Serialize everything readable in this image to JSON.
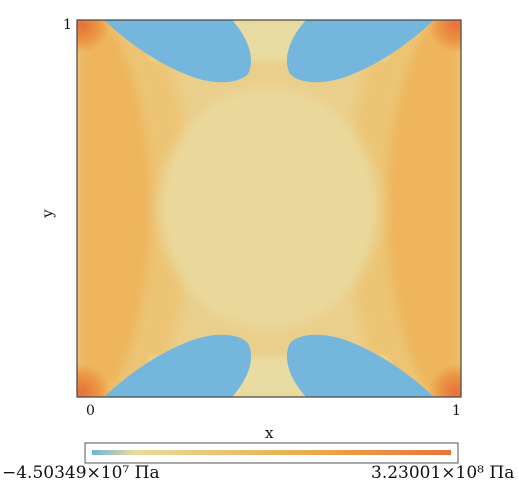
{
  "chart_data": {
    "type": "heatmap",
    "title": "",
    "xlabel": "x",
    "ylabel": "y",
    "xlim": [
      0,
      1
    ],
    "ylim": [
      0,
      1
    ],
    "x_ticks": [
      "0",
      "1"
    ],
    "y_ticks": [
      "1"
    ],
    "colorbar": {
      "min_label": "−4.50349×10⁷ Па",
      "max_label": "3.23001×10⁸ Па",
      "min_value": -45034900,
      "max_value": 323001000,
      "colors": [
        "#6fb4dd",
        "#e7dc9d",
        "#e9ac4c",
        "#e8743a"
      ]
    },
    "regions": [
      {
        "name": "corner peaks",
        "description": "maximum stress at the four corners",
        "level": "high"
      },
      {
        "name": "left/right edge bands",
        "description": "elevated stress along the vertical edges",
        "level": "medium-high"
      },
      {
        "name": "top and bottom lobes",
        "description": "four negative (compressive) lobes near the top and bottom edges",
        "level": "low"
      },
      {
        "name": "interior",
        "description": "near-uniform moderate stress",
        "level": "medium"
      }
    ]
  }
}
